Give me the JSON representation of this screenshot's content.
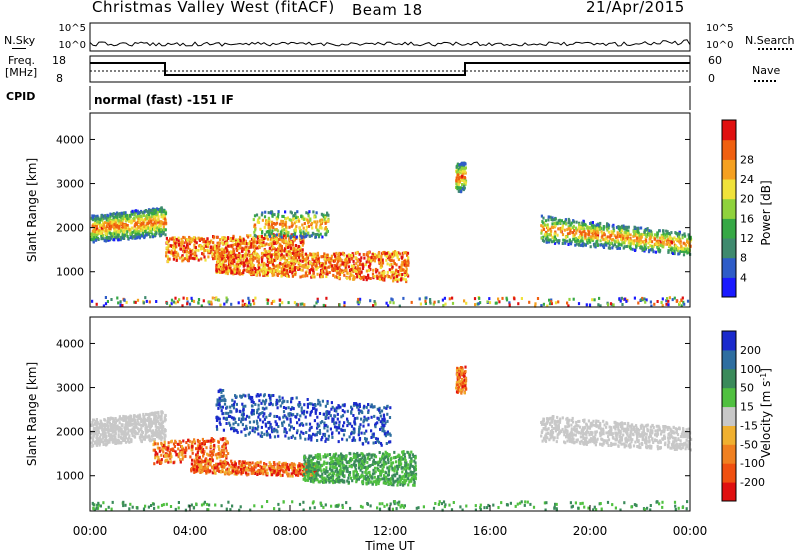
{
  "header": {
    "station": "Christmas Valley West (fitACF)",
    "beam": "Beam 18",
    "date": "21/Apr/2015"
  },
  "strip": {
    "nsky_label": "N.Sky",
    "nsearch_label": "N.Search",
    "nsky_ticks": [
      "10^5",
      "10^0"
    ],
    "nsearch_ticks": [
      "10^5",
      "10^0"
    ],
    "freq_label_1": "Freq.",
    "freq_label_2": "[MHz]",
    "freq_ticks": [
      "18",
      "8"
    ],
    "nave_label": "Nave",
    "nave_ticks": [
      "60",
      "0"
    ],
    "cpid_label": "CPID",
    "cpid_value": "normal (fast) -151 IF"
  },
  "chart_data": [
    {
      "type": "heatmap",
      "panel": "power",
      "xlabel": "",
      "ylabel": "Slant Range [km]",
      "x_range_hours": [
        0,
        24
      ],
      "ylim": [
        200,
        4600
      ],
      "y_ticks": [
        1000,
        2000,
        3000,
        4000
      ],
      "colorbar_label": "Power [dB]",
      "colorbar_ticks": [
        4,
        8,
        12,
        16,
        20,
        24,
        28
      ],
      "colorbar_colors": [
        "#1a1aff",
        "#2e5cc8",
        "#3f8a6e",
        "#36a845",
        "#8fd23c",
        "#f0e23a",
        "#f5a020",
        "#f06010",
        "#e01010"
      ],
      "features": [
        {
          "start_hr": 0.0,
          "end_hr": 3.0,
          "range_km": [
            1700,
            2400
          ],
          "level": "medium"
        },
        {
          "start_hr": 3.0,
          "end_hr": 8.0,
          "range_km": [
            1200,
            1800
          ],
          "level": "high"
        },
        {
          "start_hr": 5.0,
          "end_hr": 12.5,
          "range_km": [
            800,
            1400
          ],
          "level": "high"
        },
        {
          "start_hr": 14.7,
          "end_hr": 15.0,
          "range_km": [
            2900,
            3500
          ],
          "level": "medium"
        },
        {
          "start_hr": 18.0,
          "end_hr": 24.0,
          "range_km": [
            1500,
            2200
          ],
          "level": "medium"
        }
      ]
    },
    {
      "type": "heatmap",
      "panel": "velocity",
      "xlabel": "Time UT",
      "ylabel": "Slant Range [km]",
      "x_range_hours": [
        0,
        24
      ],
      "x_ticks": [
        "00:00",
        "04:00",
        "08:00",
        "12:00",
        "16:00",
        "20:00",
        "00:00"
      ],
      "ylim": [
        200,
        4600
      ],
      "y_ticks": [
        1000,
        2000,
        3000,
        4000
      ],
      "colorbar_label": "Velocity [m s^-1]",
      "colorbar_ticks": [
        200,
        100,
        50,
        15,
        -15,
        -50,
        -100,
        -200
      ],
      "colorbar_colors": [
        "#1a2acc",
        "#2e6ea0",
        "#3a8a5a",
        "#50c040",
        "#c8c8c8",
        "#f0b030",
        "#f08020",
        "#f05010",
        "#e01010"
      ]
    }
  ]
}
